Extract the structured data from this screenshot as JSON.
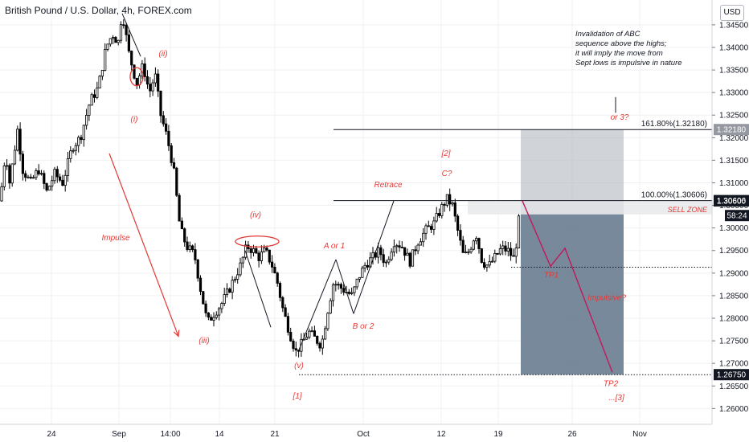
{
  "header": {
    "title": "British Pound / U.S. Dollar, 4h, FOREX.com",
    "currency_button": "USD"
  },
  "colors": {
    "annotation": "#e53935",
    "candle": "#000000",
    "grid": "#eef0f3",
    "box_gray": "#b7bcc2",
    "box_dark": "#5c6f86",
    "price_tag": "#131722"
  },
  "chart_data": {
    "type": "candlestick",
    "symbol": "GBPUSD",
    "timeframe": "4h",
    "y_axis": {
      "range": [
        1.2565,
        1.3505
      ],
      "ticks": [
        "1.34500",
        "1.34000",
        "1.33500",
        "1.33000",
        "1.32500",
        "1.32000",
        "1.31500",
        "1.31000",
        "1.30500",
        "1.30000",
        "1.29500",
        "1.29000",
        "1.28500",
        "1.28000",
        "1.27500",
        "1.27000",
        "1.26500",
        "1.26000"
      ]
    },
    "x_axis": {
      "labels": [
        "24",
        "Sep",
        "14:00",
        "14",
        "21",
        "Oct",
        "12",
        "19",
        "26",
        "Nov"
      ]
    },
    "price_path": [
      {
        "t": 0,
        "p": 1.306
      },
      {
        "t": 7,
        "p": 1.317
      },
      {
        "t": 12,
        "p": 1.31
      },
      {
        "t": 22,
        "p": 1.322
      },
      {
        "t": 28,
        "p": 1.313
      },
      {
        "t": 38,
        "p": 1.31
      },
      {
        "t": 48,
        "p": 1.313
      },
      {
        "t": 58,
        "p": 1.308
      },
      {
        "t": 68,
        "p": 1.312
      },
      {
        "t": 78,
        "p": 1.31
      },
      {
        "t": 90,
        "p": 1.318
      },
      {
        "t": 100,
        "p": 1.32
      },
      {
        "t": 112,
        "p": 1.328
      },
      {
        "t": 122,
        "p": 1.331
      },
      {
        "t": 132,
        "p": 1.34
      },
      {
        "t": 140,
        "p": 1.343
      },
      {
        "t": 147,
        "p": 1.341
      },
      {
        "t": 152,
        "p": 1.348
      },
      {
        "t": 160,
        "p": 1.339
      },
      {
        "t": 170,
        "p": 1.332
      },
      {
        "t": 178,
        "p": 1.336
      },
      {
        "t": 186,
        "p": 1.33
      },
      {
        "t": 193,
        "p": 1.334
      },
      {
        "t": 200,
        "p": 1.325
      },
      {
        "t": 208,
        "p": 1.32
      },
      {
        "t": 216,
        "p": 1.313
      },
      {
        "t": 224,
        "p": 1.3
      },
      {
        "t": 232,
        "p": 1.296
      },
      {
        "t": 242,
        "p": 1.294
      },
      {
        "t": 250,
        "p": 1.286
      },
      {
        "t": 258,
        "p": 1.279
      },
      {
        "t": 266,
        "p": 1.281
      },
      {
        "t": 275,
        "p": 1.283
      },
      {
        "t": 284,
        "p": 1.286
      },
      {
        "t": 292,
        "p": 1.289
      },
      {
        "t": 300,
        "p": 1.292
      },
      {
        "t": 307,
        "p": 1.296
      },
      {
        "t": 315,
        "p": 1.295
      },
      {
        "t": 322,
        "p": 1.2935
      },
      {
        "t": 330,
        "p": 1.295
      },
      {
        "t": 338,
        "p": 1.292
      },
      {
        "t": 345,
        "p": 1.288
      },
      {
        "t": 352,
        "p": 1.282
      },
      {
        "t": 360,
        "p": 1.277
      },
      {
        "t": 368,
        "p": 1.2725
      },
      {
        "t": 376,
        "p": 1.2745
      },
      {
        "t": 384,
        "p": 1.277
      },
      {
        "t": 392,
        "p": 1.2755
      },
      {
        "t": 400,
        "p": 1.274
      },
      {
        "t": 408,
        "p": 1.282
      },
      {
        "t": 415,
        "p": 1.288
      },
      {
        "t": 422,
        "p": 1.287
      },
      {
        "t": 430,
        "p": 1.286
      },
      {
        "t": 438,
        "p": 1.285
      },
      {
        "t": 446,
        "p": 1.289
      },
      {
        "t": 455,
        "p": 1.292
      },
      {
        "t": 464,
        "p": 1.2935
      },
      {
        "t": 472,
        "p": 1.295
      },
      {
        "t": 480,
        "p": 1.292
      },
      {
        "t": 490,
        "p": 1.297
      },
      {
        "t": 500,
        "p": 1.296
      },
      {
        "t": 510,
        "p": 1.2925
      },
      {
        "t": 520,
        "p": 1.297
      },
      {
        "t": 530,
        "p": 1.2995
      },
      {
        "t": 540,
        "p": 1.301
      },
      {
        "t": 548,
        "p": 1.304
      },
      {
        "t": 556,
        "p": 1.3065
      },
      {
        "t": 563,
        "p": 1.305
      },
      {
        "t": 570,
        "p": 1.299
      },
      {
        "t": 577,
        "p": 1.2935
      },
      {
        "t": 584,
        "p": 1.295
      },
      {
        "t": 592,
        "p": 1.299
      },
      {
        "t": 600,
        "p": 1.2925
      },
      {
        "t": 608,
        "p": 1.2915
      },
      {
        "t": 616,
        "p": 1.2935
      },
      {
        "t": 624,
        "p": 1.2955
      },
      {
        "t": 632,
        "p": 1.295
      },
      {
        "t": 640,
        "p": 1.293
      },
      {
        "t": 648,
        "p": 1.3055
      }
    ],
    "price_lines": [
      {
        "name": "fib-161",
        "price": 1.3218,
        "label": "161.80%(1.32180)",
        "tag": "1.32180",
        "tag_style": "gray"
      },
      {
        "name": "fib-100",
        "price": 1.30606,
        "label": "100.00%(1.30606)",
        "tag": "1.30606",
        "tag_style": "dark"
      },
      {
        "name": "sell-zone-low",
        "price": 1.306,
        "tag": "1.30600",
        "tag_style": "dark"
      },
      {
        "name": "tp1-level",
        "price": 1.2913,
        "style": "dotted"
      },
      {
        "name": "tp2-level",
        "price": 1.2675,
        "tag": "1.26750",
        "tag_style": "dark",
        "style": "dotted"
      }
    ],
    "countdown_tag": {
      "text": "58:24",
      "price": 1.30275
    },
    "sell_zone": {
      "label": "SELL ZONE",
      "top": 1.30606,
      "bottom": 1.303
    },
    "position": {
      "entry": 1.30606,
      "stop": 1.3218,
      "target": 1.2675
    },
    "projection": [
      {
        "t": 650,
        "p": 1.306
      },
      {
        "t": 685,
        "p": 1.2915
      },
      {
        "t": 703,
        "p": 1.2955
      },
      {
        "t": 762,
        "p": 1.268
      }
    ],
    "wave_lines": [
      {
        "from": {
          "t": 152,
          "p": 1.3475
        },
        "to": {
          "t": 175,
          "p": 1.338
        }
      },
      {
        "from": {
          "t": 305,
          "p": 1.295
        },
        "to": {
          "t": 337,
          "p": 1.278
        }
      },
      {
        "from": {
          "t": 372,
          "p": 1.273
        },
        "to": {
          "t": 418,
          "p": 1.293
        }
      },
      {
        "from": {
          "t": 418,
          "p": 1.293
        },
        "to": {
          "t": 440,
          "p": 1.281
        }
      },
      {
        "from": {
          "t": 440,
          "p": 1.281
        },
        "to": {
          "t": 490,
          "p": 1.306
        }
      }
    ],
    "impulse_arrow": {
      "from": {
        "t": 136,
        "p": 1.3165
      },
      "to": {
        "t": 222,
        "p": 1.276
      }
    },
    "ellipses": [
      {
        "t": 170,
        "p": 1.3335,
        "rt": 8,
        "rp": 0.002
      },
      {
        "t": 320,
        "p": 1.297,
        "rt": 27,
        "rp": 0.0012
      }
    ],
    "callout_line": {
      "t": 766,
      "p_from": 1.329,
      "p_to": 1.3255
    },
    "annotations": [
      {
        "text": "(ii)",
        "t": 203,
        "p": 1.338,
        "color": "red"
      },
      {
        "text": "(i)",
        "t": 167,
        "p": 1.3235,
        "color": "red"
      },
      {
        "text": "Impulse",
        "t": 144,
        "p": 1.2973,
        "color": "red"
      },
      {
        "text": "(iii)",
        "t": 254,
        "p": 1.2745,
        "color": "red"
      },
      {
        "text": "(iv)",
        "t": 318,
        "p": 1.3023,
        "color": "red"
      },
      {
        "text": "(v)",
        "t": 372,
        "p": 1.269,
        "color": "red"
      },
      {
        "text": "[1]",
        "t": 370,
        "p": 1.2622,
        "color": "red"
      },
      {
        "text": "A or 1",
        "t": 416,
        "p": 1.2955,
        "color": "red"
      },
      {
        "text": "B or 2",
        "t": 452,
        "p": 1.2777,
        "color": "red"
      },
      {
        "text": "Retrace",
        "t": 483,
        "p": 1.309,
        "color": "red"
      },
      {
        "text": "[2]",
        "t": 555,
        "p": 1.316,
        "color": "red"
      },
      {
        "text": "C?",
        "t": 556,
        "p": 1.3115,
        "color": "red"
      },
      {
        "text": "TP1",
        "t": 686,
        "p": 1.289,
        "color": "red"
      },
      {
        "text": "Impulsive?",
        "t": 755,
        "p": 1.284,
        "color": "red"
      },
      {
        "text": "TP2",
        "t": 760,
        "p": 1.265,
        "color": "red"
      },
      {
        "text": "...[3]",
        "t": 767,
        "p": 1.2618,
        "color": "red"
      },
      {
        "text": "or 3?",
        "t": 771,
        "p": 1.324,
        "color": "red"
      }
    ],
    "note": {
      "lines": [
        "Invalidation of ABC",
        "sequence above the highs;",
        "it will imply the move from",
        "Sept lows is impulsive in nature"
      ],
      "t": 716,
      "p": 1.3425
    }
  }
}
